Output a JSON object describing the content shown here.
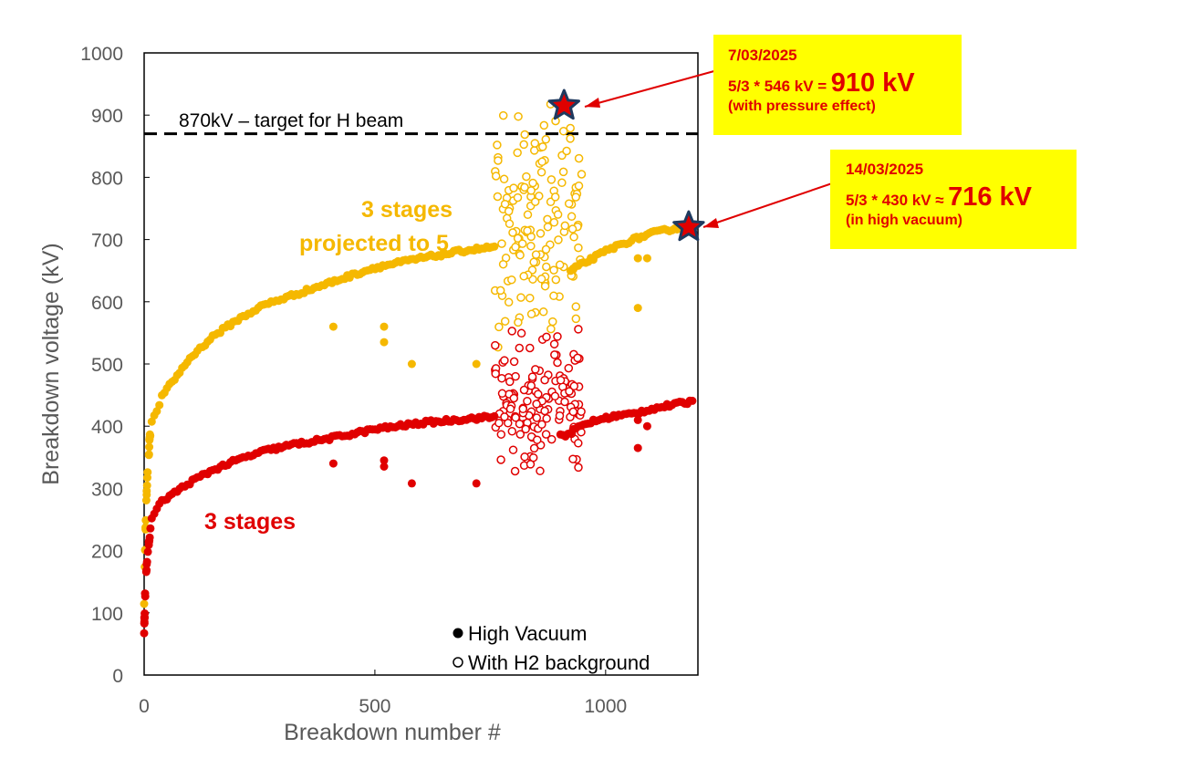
{
  "chart_data": {
    "type": "scatter",
    "xlabel": "Breakdown number #",
    "ylabel": "Breakdown voltage (kV)",
    "xlim": [
      0,
      1200
    ],
    "ylim": [
      0,
      1000
    ],
    "x_ticks": [
      "0",
      "500",
      "1000"
    ],
    "y_ticks": [
      "0",
      "100",
      "200",
      "300",
      "400",
      "500",
      "600",
      "700",
      "800",
      "900",
      "1000"
    ],
    "grid": false,
    "legend": {
      "placement": "bottom-right",
      "entries": [
        {
          "marker": "filled",
          "label": "High Vacuum"
        },
        {
          "marker": "open",
          "label": "With H2 background"
        }
      ]
    },
    "reference_line": {
      "y": 870,
      "style": "dashed",
      "color": "#000000",
      "label": "870kV – target for H beam"
    },
    "series_labels": [
      {
        "text": "3 stages",
        "color": "#e00000"
      },
      {
        "text": "3 stages",
        "color": "#f5b800"
      },
      {
        "text": "projected to 5",
        "color": "#f5b800"
      }
    ],
    "series": [
      {
        "key": "red_hv",
        "color": "#e00000",
        "marker": "filled",
        "curve": [
          [
            0,
            70
          ],
          [
            2,
            125
          ],
          [
            4,
            165
          ],
          [
            8,
            195
          ],
          [
            12,
            225
          ],
          [
            16,
            250
          ],
          [
            25,
            265
          ],
          [
            40,
            280
          ],
          [
            70,
            295
          ],
          [
            100,
            310
          ],
          [
            150,
            330
          ],
          [
            200,
            345
          ],
          [
            260,
            360
          ],
          [
            320,
            370
          ],
          [
            400,
            380
          ],
          [
            500,
            395
          ],
          [
            600,
            405
          ],
          [
            700,
            412
          ],
          [
            760,
            415
          ],
          [
            910,
            385
          ],
          [
            960,
            405
          ],
          [
            1010,
            415
          ],
          [
            1060,
            420
          ],
          [
            1100,
            428
          ],
          [
            1150,
            435
          ],
          [
            1190,
            440
          ]
        ],
        "outliers": [
          [
            410,
            340
          ],
          [
            520,
            335
          ],
          [
            520,
            345
          ],
          [
            580,
            308
          ],
          [
            720,
            308
          ],
          [
            1070,
            365
          ],
          [
            1070,
            410
          ],
          [
            1090,
            400
          ]
        ]
      },
      {
        "key": "orange_hv",
        "color": "#f5b800",
        "marker": "filled",
        "curve": [
          [
            0,
            115
          ],
          [
            2,
            200
          ],
          [
            4,
            270
          ],
          [
            8,
            330
          ],
          [
            12,
            380
          ],
          [
            16,
            405
          ],
          [
            25,
            420
          ],
          [
            40,
            450
          ],
          [
            70,
            480
          ],
          [
            100,
            510
          ],
          [
            150,
            545
          ],
          [
            200,
            570
          ],
          [
            260,
            595
          ],
          [
            320,
            610
          ],
          [
            400,
            630
          ],
          [
            500,
            655
          ],
          [
            600,
            670
          ],
          [
            700,
            683
          ],
          [
            760,
            688
          ],
          [
            920,
            648
          ],
          [
            960,
            665
          ],
          [
            1010,
            685
          ],
          [
            1060,
            700
          ],
          [
            1100,
            710
          ],
          [
            1150,
            718
          ],
          [
            1190,
            720
          ]
        ],
        "outliers": [
          [
            410,
            560
          ],
          [
            520,
            535
          ],
          [
            520,
            560
          ],
          [
            580,
            500
          ],
          [
            720,
            500
          ],
          [
            1070,
            590
          ],
          [
            1070,
            670
          ],
          [
            1090,
            670
          ]
        ]
      },
      {
        "key": "red_h2",
        "color": "#e00000",
        "marker": "open",
        "x_range": [
          760,
          950
        ],
        "y_range": [
          250,
          560
        ]
      },
      {
        "key": "orange_h2",
        "color": "#f5b800",
        "marker": "open",
        "x_range": [
          760,
          950
        ],
        "y_range": [
          420,
          920
        ]
      }
    ],
    "highlights": [
      {
        "x": 910,
        "y": 915,
        "marker": "star",
        "fill": "#e00000",
        "stroke": "#1f3a5f"
      },
      {
        "x": 1180,
        "y": 720,
        "marker": "star",
        "fill": "#e00000",
        "stroke": "#1f3a5f"
      }
    ],
    "annotations": [
      {
        "date": "7/03/2025",
        "calc": "5/3 * 546 kV =",
        "result": "910 kV",
        "note": "(with pressure effect)",
        "points_to": {
          "x": 910,
          "y": 915
        }
      },
      {
        "date": "14/03/2025",
        "calc": "5/3 * 430 kV ≈",
        "result": "716 kV",
        "note": "(in high vacuum)",
        "points_to": {
          "x": 1180,
          "y": 720
        }
      }
    ]
  }
}
